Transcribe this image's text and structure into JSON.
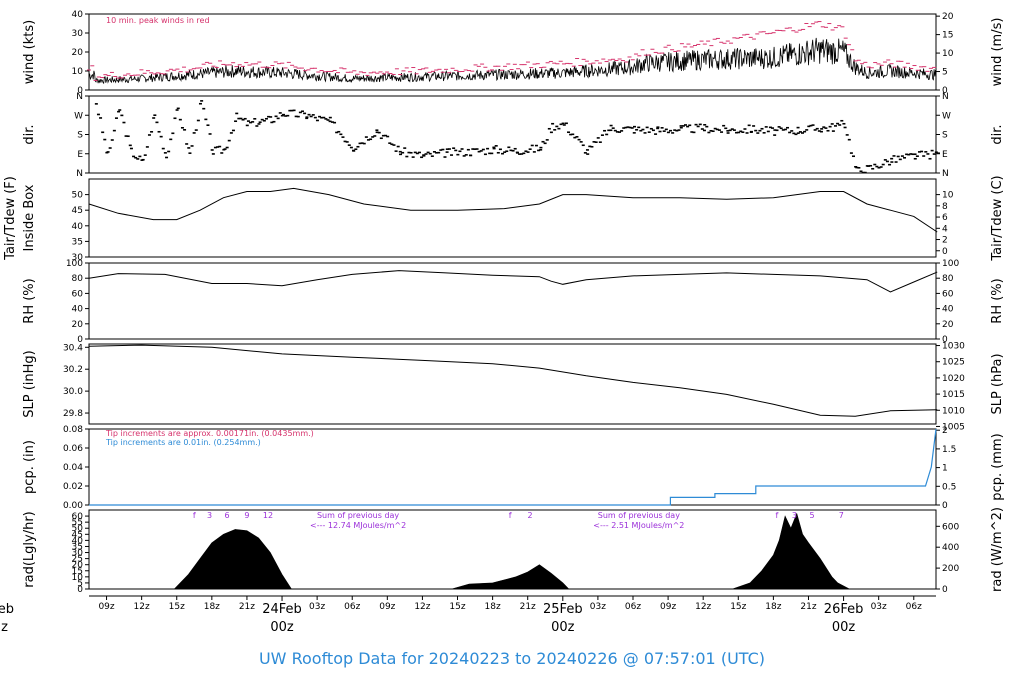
{
  "chart_data": {
    "type": "line",
    "title": "UW Rooftop Data for 20240223  to  20240226 @ 07:57:01  (UTC)",
    "x_ticks": [
      "09z",
      "12z",
      "15z",
      "18z",
      "21z",
      "03z",
      "06z",
      "09z",
      "12z",
      "15z",
      "18z",
      "21z",
      "03z",
      "06z",
      "09z",
      "12z",
      "15z",
      "18z",
      "21z",
      "03z",
      "06z"
    ],
    "day_labels": [
      {
        "day": "eb",
        "hour": "z",
        "at_hour": 0
      },
      {
        "day": "24Feb",
        "hour": "00z",
        "at_hour": 24
      },
      {
        "day": "25Feb",
        "hour": "00z",
        "at_hour": 48
      },
      {
        "day": "26Feb",
        "hour": "00z",
        "at_hour": 72
      }
    ],
    "x_range_hours": [
      7.5,
      79.9
    ],
    "panels": {
      "wind": {
        "ylabel": "wind (kts)",
        "ylabel_right": "wind (m/s)",
        "ylim": [
          0,
          40
        ],
        "yticks": [
          0,
          10,
          20,
          30,
          40
        ],
        "right_ylim": [
          0,
          20.58
        ],
        "right_yticks": [
          0,
          5,
          10,
          15,
          20
        ],
        "note": "10 min. peak winds in red",
        "series": [
          {
            "hours": [
              8,
              12,
              16,
              18,
              20,
              24,
              30,
              36,
              42,
              48,
              54,
              55,
              60,
              66,
              70,
              72,
              73,
              74,
              76,
              80
            ],
            "values": [
              5,
              6,
              8,
              9,
              10,
              9,
              6,
              7,
              8,
              9,
              12,
              14,
              16,
              17,
              21,
              20,
              12,
              9,
              10,
              8
            ]
          },
          {
            "hours": [
              8,
              12,
              16,
              18,
              20,
              24,
              30,
              36,
              42,
              48,
              54,
              55,
              60,
              66,
              70,
              72,
              73,
              74,
              76,
              80
            ],
            "values": [
              7,
              9,
              11,
              13,
              14,
              13,
              9,
              10,
              12,
              14,
              17,
              20,
              24,
              30,
              35,
              32,
              16,
              13,
              14,
              11
            ]
          }
        ]
      },
      "dir": {
        "ylabel": "dir.",
        "ylabel_right": "dir.",
        "yticks": [
          "N",
          "E",
          "S",
          "W",
          "N"
        ],
        "points": {
          "hours": [
            8,
            9,
            10,
            11,
            12,
            13,
            14,
            15,
            16,
            17,
            18,
            19,
            20,
            21,
            22,
            23,
            24,
            26,
            28,
            30,
            32,
            34,
            36,
            38,
            40,
            42,
            44,
            46,
            47,
            48,
            50,
            52,
            54,
            56,
            58,
            60,
            62,
            64,
            66,
            68,
            70,
            71,
            72,
            73,
            74,
            76,
            78,
            80
          ],
          "values": [
            330,
            80,
            300,
            100,
            50,
            270,
            80,
            300,
            90,
            330,
            100,
            110,
            260,
            230,
            240,
            250,
            280,
            270,
            240,
            120,
            200,
            100,
            80,
            95,
            100,
            110,
            105,
            115,
            220,
            230,
            100,
            210,
            205,
            200,
            205,
            210,
            200,
            205,
            195,
            200,
            210,
            215,
            230,
            10,
            20,
            60,
            80,
            90
          ]
        }
      },
      "temp": {
        "ylabel": "Tair/Tdew (F)",
        "ylabel2": "Inside Box",
        "ylabel_right": "Tair/Tdew (C)",
        "ylim": [
          30,
          55
        ],
        "yticks": [
          30,
          35,
          40,
          45,
          50
        ],
        "right_yticks": [
          0,
          2,
          4,
          6,
          8,
          10
        ],
        "series": [
          {
            "hours": [
              7.5,
              10,
              13,
              15,
              17,
              19,
              21,
              23,
              25,
              28,
              31,
              35,
              39,
              43,
              46,
              48,
              50,
              54,
              58,
              62,
              66,
              70,
              72,
              74,
              76,
              78,
              80
            ],
            "values": [
              47,
              44,
              42,
              42,
              45,
              49,
              51,
              51,
              52,
              50,
              47,
              45,
              45,
              45.5,
              47,
              50,
              50,
              49,
              49,
              48.5,
              49,
              51,
              51,
              47,
              45,
              43,
              38
            ]
          }
        ]
      },
      "rh": {
        "ylabel": "RH (%)",
        "ylabel_right": "RH (%)",
        "ylim": [
          0,
          100
        ],
        "yticks": [
          0,
          20,
          40,
          60,
          80,
          100
        ],
        "series": [
          {
            "hours": [
              7.5,
              10,
              14,
              18,
              21,
              24,
              27,
              30,
              34,
              38,
              42,
              46,
              47,
              48,
              50,
              54,
              58,
              62,
              66,
              70,
              74,
              76,
              78,
              80
            ],
            "values": [
              80,
              86,
              85,
              73,
              73,
              70,
              78,
              85,
              90,
              87,
              84,
              82,
              76,
              72,
              78,
              83,
              85,
              87,
              85,
              83,
              78,
              62,
              75,
              88
            ]
          }
        ]
      },
      "slp": {
        "ylabel": "SLP (inHg)",
        "ylabel_right": "SLP (hPa)",
        "ylim": [
          29.7,
          30.43
        ],
        "yticks": [
          29.8,
          30.0,
          30.2,
          30.4
        ],
        "right_yticks": [
          1005,
          1010,
          1015,
          1020,
          1025,
          1030
        ],
        "series": [
          {
            "hours": [
              7.5,
              12,
              18,
              24,
              30,
              36,
              42,
              46,
              50,
              54,
              58,
              62,
              66,
              70,
              73,
              76,
              80
            ],
            "values": [
              30.41,
              30.42,
              30.4,
              30.34,
              30.31,
              30.28,
              30.25,
              30.21,
              30.14,
              30.08,
              30.03,
              29.97,
              29.88,
              29.78,
              29.77,
              29.82,
              29.83
            ]
          }
        ]
      },
      "pcp": {
        "ylabel": "pcp. (in)",
        "ylabel_right": "pcp. (mm)",
        "ylim": [
          0,
          0.08
        ],
        "yticks": [
          0.0,
          0.02,
          0.04,
          0.06,
          0.08
        ],
        "right_yticks": [
          "0",
          "0.5",
          "1",
          "1.5",
          "2"
        ],
        "note1": "Tip increments are approx. 0.00171in. (0.0435mm.)",
        "note2": "Tip increments are 0.01in. (0.254mm.)",
        "series": [
          {
            "hours": [
              7.5,
              57.2,
              57.2,
              61,
              61,
              64.5,
              64.5,
              79,
              79.5,
              79.9
            ],
            "values": [
              0,
              0,
              0.008,
              0.008,
              0.012,
              0.012,
              0.02,
              0.02,
              0.04,
              0.08
            ]
          }
        ]
      },
      "rad": {
        "ylabel": "rad(Lgly/hr)",
        "ylabel_right": "rad (W/m^2)",
        "ylim": [
          0,
          65
        ],
        "yticks": [
          0,
          5,
          10,
          15,
          20,
          25,
          30,
          35,
          40,
          45,
          50,
          55,
          60
        ],
        "right_yticks": [
          0,
          200,
          400,
          600
        ],
        "hour_marks": [
          {
            "text": "f",
            "at": 16.5
          },
          {
            "text": "3",
            "at": 17.8
          },
          {
            "text": "6",
            "at": 19.3
          },
          {
            "text": "9",
            "at": 21
          },
          {
            "text": "12",
            "at": 22.8
          },
          {
            "text": "f",
            "at": 43.5
          },
          {
            "text": "2",
            "at": 45.2
          },
          {
            "text": "f",
            "at": 66.3
          },
          {
            "text": "3",
            "at": 67.8
          },
          {
            "text": "5",
            "at": 69.3
          },
          {
            "text": "7",
            "at": 71.8
          }
        ],
        "day_sums": [
          {
            "line1": "Sum of previous day",
            "line2": "<--- 12.74 MJoules/m^2",
            "at": 30.5
          },
          {
            "line1": "Sum of previous day",
            "line2": "<--- 2.51 MJoules/m^2",
            "at": 54.5
          }
        ],
        "envelope": [
          {
            "hours": [
              14.8,
              16,
              17,
              18,
              19,
              20,
              21,
              22,
              23,
              24,
              24.8
            ],
            "values": [
              0,
              12,
              25,
              38,
              45,
              49,
              48,
              42,
              30,
              12,
              0
            ]
          },
          {
            "hours": [
              38.5,
              40,
              42,
              44,
              45,
              46,
              47,
              48,
              48.5
            ],
            "values": [
              0,
              4,
              5,
              10,
              14,
              20,
              13,
              5,
              0
            ]
          },
          {
            "hours": [
              62.5,
              64,
              65,
              66,
              66.5,
              67,
              67.5,
              68,
              68.5,
              69,
              70,
              71,
              71.5,
              72.5
            ],
            "values": [
              0,
              5,
              15,
              28,
              40,
              60,
              50,
              62,
              45,
              38,
              25,
              10,
              5,
              0
            ]
          }
        ]
      }
    }
  }
}
